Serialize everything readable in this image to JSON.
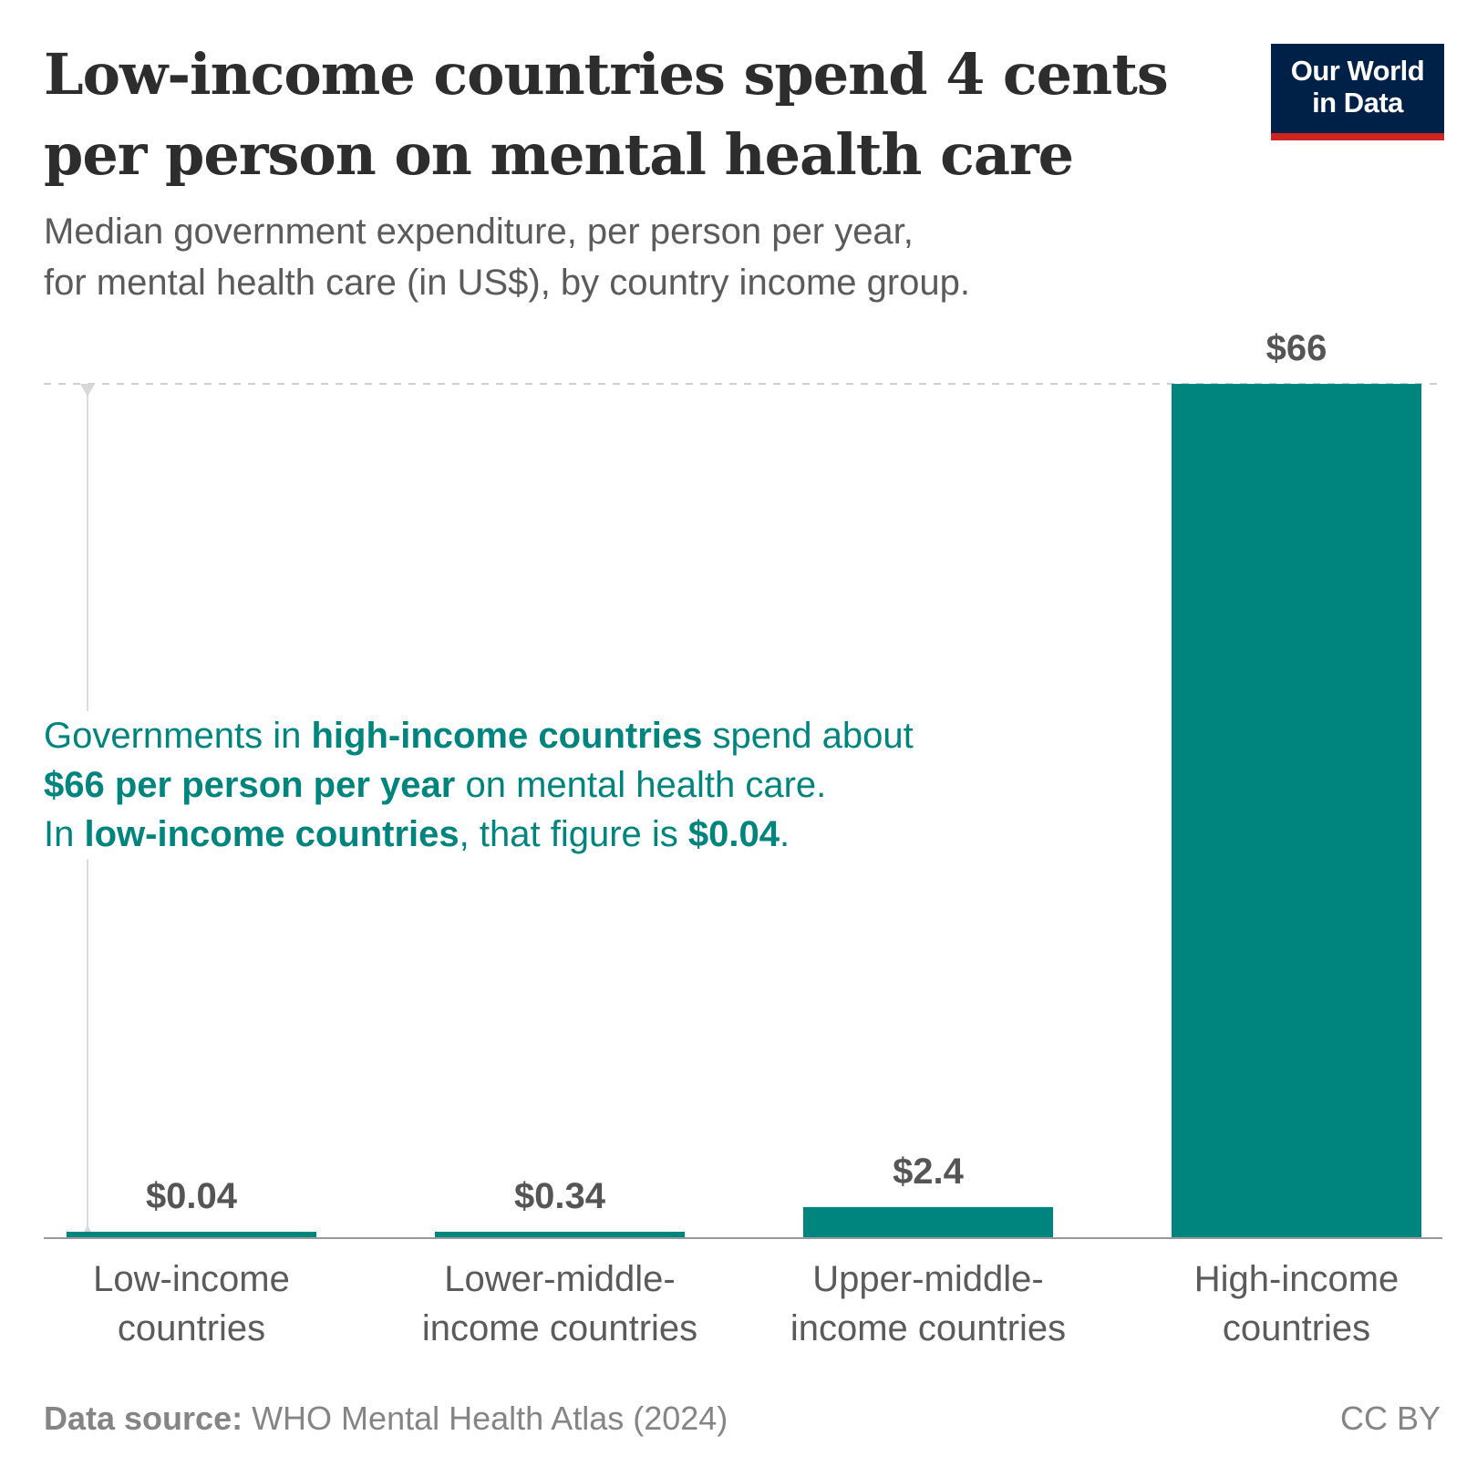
{
  "header": {
    "title": "Low-income countries spend 4 cents per person on mental health care",
    "subtitle_line1": "Median government expenditure, per person per year,",
    "subtitle_line2": "for mental health care (in US$), by country income group."
  },
  "logo": {
    "line1": "Our World",
    "line2": "in Data",
    "bg_color": "#002147",
    "accent_color": "#ce261e"
  },
  "chart_data": {
    "type": "bar",
    "categories": [
      [
        "Low-income",
        "countries"
      ],
      [
        "Lower-middle-",
        "income countries"
      ],
      [
        "Upper-middle-",
        "income countries"
      ],
      [
        "High-income",
        "countries"
      ]
    ],
    "values": [
      0.04,
      0.34,
      2.4,
      66
    ],
    "value_labels": [
      "$0.04",
      "$0.34",
      "$2.4",
      "$66"
    ],
    "title": "Low-income countries spend 4 cents per person on mental health care",
    "xlabel": "",
    "ylabel": "",
    "ylim": [
      0,
      66
    ],
    "grid": false,
    "bar_color": "#00847e",
    "label_color": "#555555"
  },
  "annotation": {
    "p1_a": "Governments in ",
    "p1_b": "high-income countries",
    "p1_c": " spend about",
    "p1_d": "$66 per person per year",
    "p1_e": " on mental health care.",
    "p2_a": "In ",
    "p2_b": "low-income countries",
    "p2_c": ", that figure is ",
    "p2_d": "$0.04",
    "p2_e": ".",
    "color": "#00847e"
  },
  "footer": {
    "source_label": "Data source:",
    "source_text": " WHO Mental Health Atlas (2024)",
    "license": "CC BY"
  }
}
